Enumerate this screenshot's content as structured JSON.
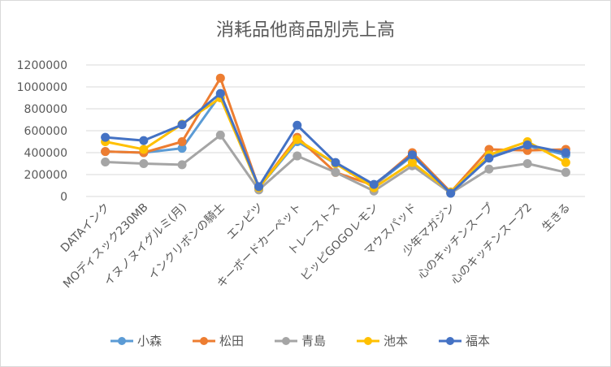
{
  "chart_data": {
    "type": "line",
    "title": "消耗品他商品別売上高",
    "xlabel": "",
    "ylabel": "",
    "ylim": [
      0,
      1200000
    ],
    "yticks": [
      "0",
      "200000",
      "400000",
      "600000",
      "800000",
      "1000000",
      "1200000"
    ],
    "grid": true,
    "legend": "bottom",
    "categories": [
      "DATAインク",
      "MOディスック230MB",
      "イヌノヌイグルミ(月)",
      "インクリボンの騎士",
      "エンピツ",
      "キーボードカーペット",
      "トレーストス",
      "ピッピGOGOレモン",
      "マウスパッド",
      "少年マガジン",
      "心のキッチンスープ",
      "心のキッチンスープ2",
      "生きる"
    ],
    "series": [
      {
        "name": "小森",
        "color": "#5B9BD5",
        "values": [
          410000,
          400000,
          440000,
          930000,
          80000,
          500000,
          300000,
          100000,
          370000,
          40000,
          380000,
          460000,
          380000
        ]
      },
      {
        "name": "松田",
        "color": "#ED7D31",
        "values": [
          410000,
          400000,
          500000,
          1080000,
          80000,
          540000,
          220000,
          100000,
          400000,
          40000,
          430000,
          420000,
          430000
        ]
      },
      {
        "name": "青島",
        "color": "#A5A5A5",
        "values": [
          315000,
          300000,
          290000,
          560000,
          60000,
          370000,
          220000,
          50000,
          280000,
          30000,
          250000,
          300000,
          220000
        ]
      },
      {
        "name": "池本",
        "color": "#FFC000",
        "values": [
          500000,
          430000,
          660000,
          900000,
          80000,
          520000,
          300000,
          80000,
          310000,
          40000,
          380000,
          500000,
          310000
        ]
      },
      {
        "name": "福本",
        "color": "#4472C4",
        "values": [
          540000,
          510000,
          655000,
          940000,
          90000,
          650000,
          310000,
          110000,
          380000,
          30000,
          350000,
          470000,
          400000
        ]
      }
    ]
  }
}
